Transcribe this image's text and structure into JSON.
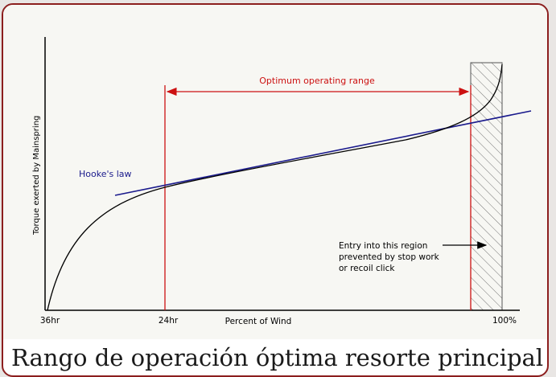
{
  "diagram": {
    "y_axis_label": "Torque exerted by Mainspring",
    "x_axis_label": "Percent of Wind",
    "x_ticks": [
      "36hr",
      "24hr",
      "100%"
    ],
    "range_label": "Optimum operating range",
    "hookes_law_label": "Hooke's law",
    "note_lines": [
      "Entry into this region",
      "prevented by stop work",
      "or recoil click"
    ],
    "colors": {
      "range": "#cc1111",
      "hookes_law": "#1a1a8c",
      "curve": "#000000",
      "hatch": "#555555"
    }
  },
  "caption": "Rango de operación óptima resorte principal"
}
